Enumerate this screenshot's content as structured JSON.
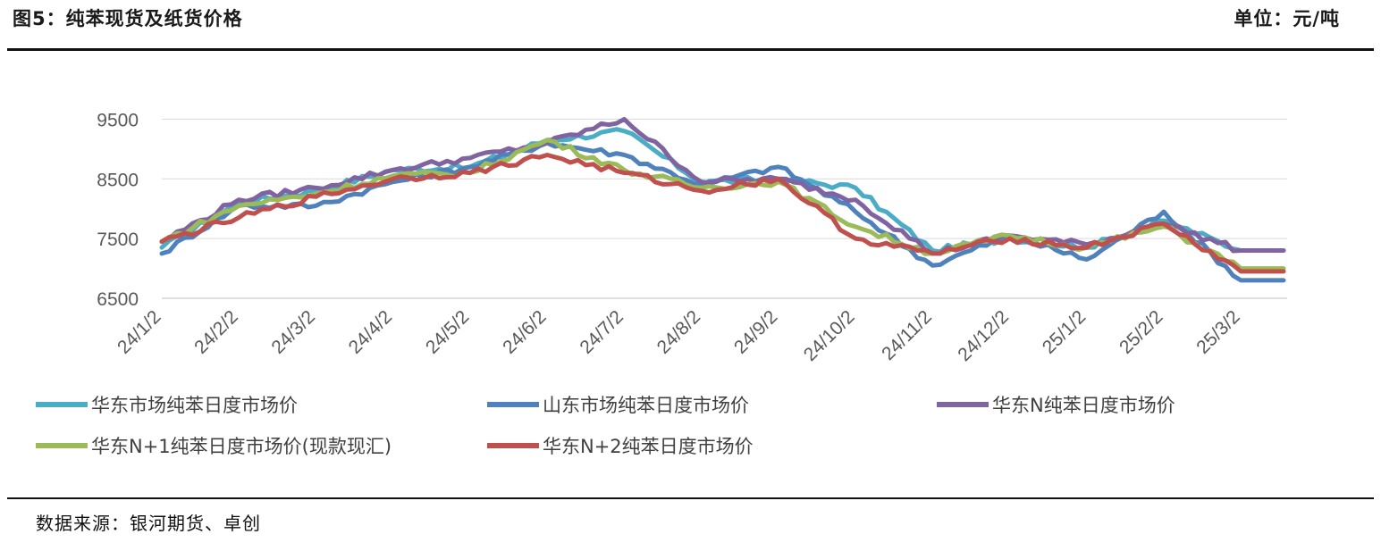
{
  "header": {
    "title": "图5：纯苯现货及纸货价格",
    "unit": "单位：元/吨"
  },
  "footer": {
    "source": "数据来源：银河期货、卓创"
  },
  "chart_data": {
    "type": "line",
    "ylim": [
      6500,
      10000
    ],
    "yticks": [
      6500,
      7500,
      8500,
      9500
    ],
    "grid": true,
    "legend_position": "bottom",
    "categories": [
      "24/1/2",
      "24/2/2",
      "24/3/2",
      "24/4/2",
      "24/5/2",
      "24/6/2",
      "24/7/2",
      "24/8/2",
      "24/9/2",
      "24/10/2",
      "24/11/2",
      "24/12/2",
      "25/1/2",
      "25/2/2",
      "25/3/2"
    ],
    "series": [
      {
        "name": "华东市场纯苯日度市场价",
        "color": "#4bacc6",
        "values": [
          7350,
          8100,
          8300,
          8650,
          8700,
          9150,
          9300,
          8450,
          8500,
          8350,
          7300,
          7500,
          7350,
          7800,
          7300
        ]
      },
      {
        "name": "山东市场纯苯日度市场价",
        "color": "#4f81bd",
        "values": [
          7250,
          8050,
          8050,
          8450,
          8700,
          9100,
          8900,
          8400,
          8700,
          7950,
          7050,
          7550,
          7150,
          7950,
          6800
        ]
      },
      {
        "name": "华东N纯苯日度市场价",
        "color": "#8064a2",
        "values": [
          7450,
          8150,
          8350,
          8650,
          8850,
          9100,
          9500,
          8450,
          8500,
          8150,
          7250,
          7550,
          7400,
          7750,
          7300
        ]
      },
      {
        "name": "华东N+1纯苯日度市场价(现款现汇)",
        "color": "#9bbb59",
        "values": [
          7450,
          8050,
          8250,
          8550,
          8600,
          9150,
          8650,
          8350,
          8450,
          7700,
          7250,
          7550,
          7350,
          7700,
          7000
        ]
      },
      {
        "name": "华东N+2纯苯日度市场价",
        "color": "#c0504d",
        "values": [
          7450,
          7850,
          8200,
          8500,
          8600,
          8900,
          8600,
          8300,
          8500,
          7500,
          7250,
          7500,
          7350,
          7750,
          6950
        ]
      }
    ]
  }
}
